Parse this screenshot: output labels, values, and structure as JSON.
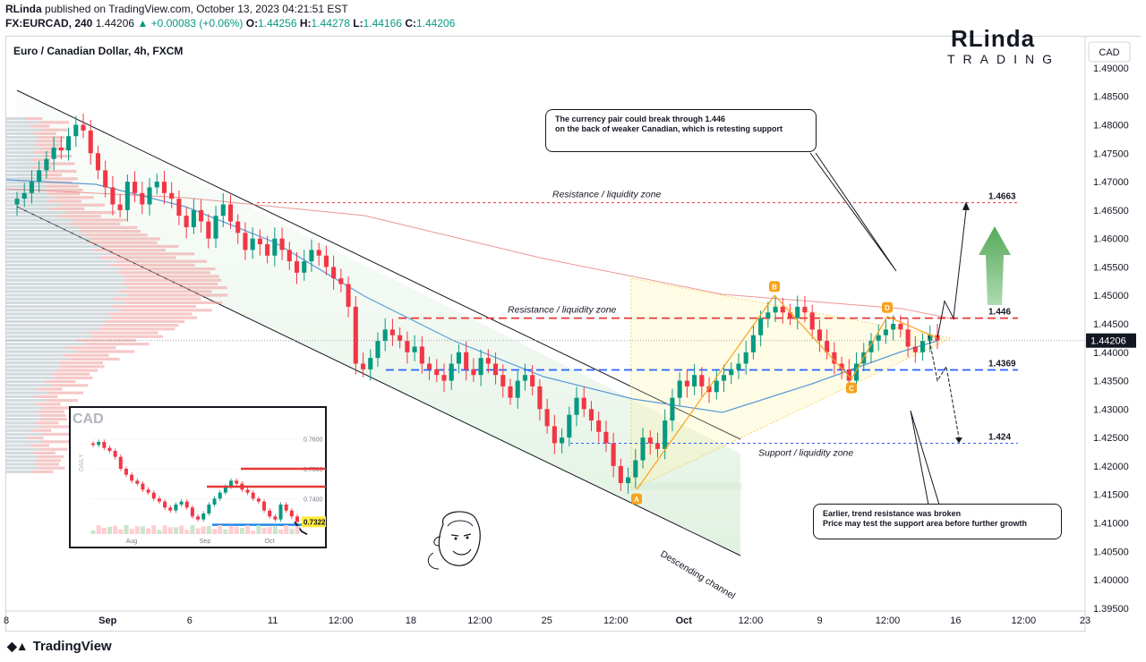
{
  "header": {
    "author": "RLinda",
    "published_text": "published on TradingView.com, October 13, 2023 04:21:51 EST",
    "symbol": "FX:EURCAD, 240",
    "price": "1.44206",
    "change": "+0.00083 (+0.06%)",
    "open_label": "O:",
    "open": "1.44256",
    "high_label": "H:",
    "high": "1.44278",
    "low_label": "L:",
    "low": "1.44166",
    "close_label": "C:",
    "close": "1.44206"
  },
  "chart_title": "Euro / Canadian Dollar, 4h, FXCM",
  "currency_badge": "CAD",
  "brand": {
    "line1": "RLinda",
    "line2": "TRADING"
  },
  "footer_brand": "TradingView",
  "callouts": {
    "top": [
      "The currency pair could break through 1.446",
      "on the back of weaker Canadian, which is retesting support"
    ],
    "bottom": [
      "Earlier, trend resistance was broken",
      "Price may test the support area before further growth"
    ]
  },
  "colors": {
    "up": "#089981",
    "down": "#f23645",
    "resistance": "#e53935",
    "support": "#2962ff",
    "ma_blue": "#5b9bd5",
    "ma_red": "#e57373",
    "pattern": "#f7a21b",
    "green_arrow": "#4caf50"
  },
  "chart_data": {
    "type": "candlestick",
    "timeframe": "4h",
    "y_axis_ticks": [
      "1.49000",
      "1.48500",
      "1.48000",
      "1.47500",
      "1.47000",
      "1.46500",
      "1.46000",
      "1.45500",
      "1.45000",
      "1.44500",
      "1.44000",
      "1.43500",
      "1.43000",
      "1.42500",
      "1.42000",
      "1.41500",
      "1.41000",
      "1.40500",
      "1.40000",
      "1.39500"
    ],
    "ylim": [
      1.3945,
      1.4955
    ],
    "x_axis_ticks": [
      {
        "label": "8",
        "pos": 0
      },
      {
        "label": "Sep",
        "pos": 0.094
      },
      {
        "label": "6",
        "pos": 0.17
      },
      {
        "label": "11",
        "pos": 0.247
      },
      {
        "label": "12:00",
        "pos": 0.31
      },
      {
        "label": "18",
        "pos": 0.375
      },
      {
        "label": "12:00",
        "pos": 0.439
      },
      {
        "label": "25",
        "pos": 0.501
      },
      {
        "label": "12:00",
        "pos": 0.565
      },
      {
        "label": "Oct",
        "pos": 0.628
      },
      {
        "label": "12:00",
        "pos": 0.69
      },
      {
        "label": "9",
        "pos": 0.754
      },
      {
        "label": "12:00",
        "pos": 0.817
      },
      {
        "label": "16",
        "pos": 0.88
      },
      {
        "label": "12:00",
        "pos": 0.943
      },
      {
        "label": "23",
        "pos": 1.0
      }
    ],
    "x_axis_bold": [
      "Sep",
      "Oct"
    ],
    "last_price": "1.44206",
    "closes": [
      1.467,
      1.468,
      1.47,
      1.472,
      1.474,
      1.476,
      1.4755,
      1.478,
      1.48,
      1.479,
      1.475,
      1.472,
      1.469,
      1.466,
      1.465,
      1.47,
      1.468,
      1.466,
      1.469,
      1.47,
      1.468,
      1.467,
      1.464,
      1.462,
      1.465,
      1.463,
      1.46,
      1.464,
      1.466,
      1.463,
      1.461,
      1.458,
      1.46,
      1.459,
      1.457,
      1.46,
      1.458,
      1.456,
      1.454,
      1.456,
      1.458,
      1.457,
      1.455,
      1.453,
      1.452,
      1.448,
      1.438,
      1.437,
      1.439,
      1.442,
      1.444,
      1.443,
      1.442,
      1.44,
      1.441,
      1.438,
      1.437,
      1.436,
      1.435,
      1.438,
      1.44,
      1.437,
      1.436,
      1.439,
      1.438,
      1.436,
      1.434,
      1.432,
      1.435,
      1.436,
      1.434,
      1.43,
      1.427,
      1.424,
      1.425,
      1.429,
      1.432,
      1.43,
      1.428,
      1.426,
      1.424,
      1.42,
      1.417,
      1.418,
      1.421,
      1.425,
      1.424,
      1.423,
      1.428,
      1.432,
      1.435,
      1.434,
      1.436,
      1.434,
      1.433,
      1.435,
      1.436,
      1.437,
      1.438,
      1.44,
      1.443,
      1.446,
      1.447,
      1.448,
      1.447,
      1.446,
      1.448,
      1.447,
      1.444,
      1.442,
      1.44,
      1.438,
      1.437,
      1.435,
      1.438,
      1.44,
      1.442,
      1.443,
      1.444,
      1.445,
      1.444,
      1.441,
      1.44,
      1.442,
      1.443,
      1.442
    ],
    "levels": [
      {
        "label": "1.4663",
        "value": 1.4663,
        "zone": "Resistance / liquidity zone",
        "color": "#e53935",
        "style": "dotted"
      },
      {
        "label": "1.446",
        "value": 1.446,
        "zone": "Resistance / liquidity zone",
        "color": "#e53935",
        "style": "dashed"
      },
      {
        "label": "1.4369",
        "value": 1.4369,
        "zone": "",
        "color": "#2962ff",
        "style": "dashed"
      },
      {
        "label": "1.424",
        "value": 1.424,
        "zone": "Support / liquidity zone",
        "color": "#2962ff",
        "style": "dotted"
      }
    ],
    "pattern_points": [
      {
        "label": "A",
        "value": 1.4158
      },
      {
        "label": "B",
        "value": 1.45
      },
      {
        "label": "C",
        "value": 1.4353
      },
      {
        "label": "D",
        "value": 1.4463
      }
    ],
    "channel_label": "Descending channel",
    "inset": {
      "title": "CAD",
      "side_label": "DAILY",
      "price_ticks": [
        "0.7600",
        "0.7500",
        "0.7400"
      ],
      "current": "0.7322",
      "x_ticks": [
        "Aug",
        "Sep",
        "Oct"
      ]
    }
  }
}
